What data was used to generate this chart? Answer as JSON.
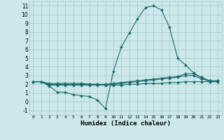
{
  "title": "",
  "xlabel": "Humidex (Indice chaleur)",
  "ylabel": "",
  "background_color": "#cce8ea",
  "grid_color": "#aacccc",
  "line_color": "#1a6b6b",
  "xlim": [
    -0.5,
    23.5
  ],
  "ylim": [
    -1.5,
    11.5
  ],
  "yticks": [
    -1,
    0,
    1,
    2,
    3,
    4,
    5,
    6,
    7,
    8,
    9,
    10,
    11
  ],
  "xticks": [
    0,
    1,
    2,
    3,
    4,
    5,
    6,
    7,
    8,
    9,
    10,
    11,
    12,
    13,
    14,
    15,
    16,
    17,
    18,
    19,
    20,
    21,
    22,
    23
  ],
  "series": [
    {
      "x": [
        0,
        1,
        2,
        3,
        4,
        5,
        6,
        7,
        8,
        9,
        10,
        11,
        12,
        13,
        14,
        15,
        16,
        17,
        18,
        19,
        20,
        21,
        22,
        23
      ],
      "y": [
        2.3,
        2.3,
        1.8,
        1.1,
        1.1,
        0.8,
        0.7,
        0.6,
        0.2,
        -0.8,
        3.5,
        6.3,
        7.9,
        9.5,
        10.8,
        11.0,
        10.5,
        8.5,
        5.0,
        4.2,
        3.3,
        2.7,
        2.3,
        2.3
      ]
    },
    {
      "x": [
        0,
        1,
        2,
        3,
        4,
        5,
        6,
        7,
        8,
        9,
        10,
        11,
        12,
        13,
        14,
        15,
        16,
        17,
        18,
        19,
        20,
        21,
        22,
        23
      ],
      "y": [
        2.3,
        2.3,
        2.0,
        2.0,
        2.0,
        2.0,
        2.0,
        2.0,
        2.0,
        2.0,
        2.1,
        2.2,
        2.3,
        2.4,
        2.5,
        2.6,
        2.7,
        2.8,
        2.9,
        3.2,
        3.2,
        2.8,
        2.4,
        2.4
      ]
    },
    {
      "x": [
        0,
        1,
        2,
        3,
        4,
        5,
        6,
        7,
        8,
        9,
        10,
        11,
        12,
        13,
        14,
        15,
        16,
        17,
        18,
        19,
        20,
        21,
        22,
        23
      ],
      "y": [
        2.3,
        2.3,
        1.9,
        1.9,
        1.9,
        1.9,
        1.9,
        1.9,
        1.9,
        1.9,
        1.9,
        1.9,
        2.0,
        2.0,
        2.1,
        2.1,
        2.1,
        2.2,
        2.2,
        2.3,
        2.3,
        2.3,
        2.3,
        2.3
      ]
    },
    {
      "x": [
        0,
        1,
        2,
        3,
        4,
        5,
        6,
        7,
        8,
        9,
        10,
        11,
        12,
        13,
        14,
        15,
        16,
        17,
        18,
        19,
        20,
        21,
        22,
        23
      ],
      "y": [
        2.3,
        2.3,
        2.1,
        2.1,
        2.1,
        2.1,
        2.1,
        2.0,
        2.0,
        1.9,
        2.0,
        2.1,
        2.2,
        2.3,
        2.4,
        2.5,
        2.6,
        2.7,
        2.8,
        3.0,
        3.0,
        2.6,
        2.4,
        2.4
      ]
    }
  ]
}
